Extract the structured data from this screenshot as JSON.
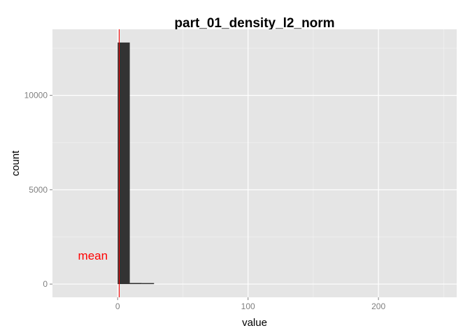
{
  "chart_data": {
    "type": "bar",
    "title": "part_01_density_l2_norm",
    "xlabel": "value",
    "ylabel": "count",
    "xlim": [
      -50,
      260
    ],
    "ylim": [
      -700,
      13500
    ],
    "x_ticks": [
      0,
      100,
      200
    ],
    "y_ticks": [
      0,
      5000,
      10000
    ],
    "grid": true,
    "background": "#e5e5e5",
    "bar_color": "#333333",
    "bins": [
      {
        "start": 0,
        "end": 9.3,
        "count": 12800
      },
      {
        "start": 9.3,
        "end": 18.6,
        "count": 60
      },
      {
        "start": 18.6,
        "end": 27.9,
        "count": 2
      },
      {
        "start": 27.9,
        "end": 37.2,
        "count": 0
      }
    ],
    "mean_line": {
      "x": 1.2,
      "color": "#ff0000"
    },
    "annotation": {
      "text": "mean",
      "x": -19,
      "y": 1300,
      "color": "#ff0000"
    }
  }
}
